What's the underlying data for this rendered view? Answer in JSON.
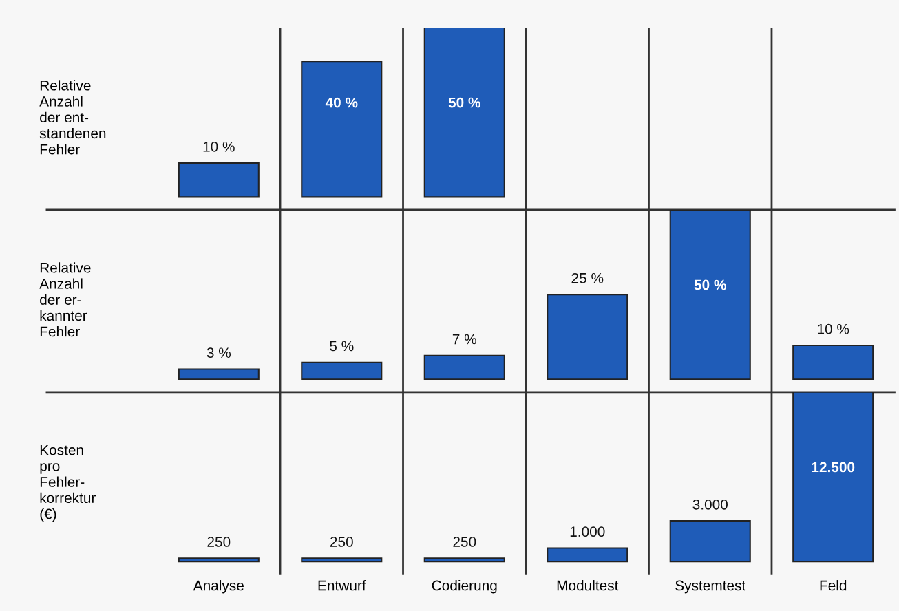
{
  "chart_data": [
    {
      "type": "bar",
      "ylabel": "Relative\nAnzahl\nder ent-\nstandenen\nFehler",
      "categories": [
        null,
        null,
        null,
        null,
        null,
        null
      ],
      "values": [
        10,
        40,
        50,
        null,
        null,
        null
      ],
      "value_labels": [
        "10 %",
        "40 %",
        "50 %",
        null,
        null,
        null
      ],
      "color": "#1f5cb8",
      "tick_labels": false
    },
    {
      "type": "bar",
      "ylabel": "Relative\nAnzahl\nder er-\nkannter\nFehler",
      "categories": [
        null,
        null,
        null,
        null,
        null,
        null
      ],
      "values": [
        3,
        5,
        7,
        25,
        50,
        10
      ],
      "value_labels": [
        "3 %",
        "5 %",
        "7 %",
        "25 %",
        "50 %",
        "10 %"
      ],
      "color": "#1f5cb8",
      "tick_labels": false
    },
    {
      "type": "bar",
      "ylabel": "Kosten\npro\nFehler-\nkorrektur\n(€)",
      "categories": [
        "Analyse",
        "Entwurf",
        "Codierung",
        "Modultest",
        "Systemtest",
        "Feld"
      ],
      "values": [
        250,
        250,
        250,
        1000,
        3000,
        12500
      ],
      "value_labels": [
        "250",
        "250",
        "250",
        "1.000",
        "3.000",
        "12.500"
      ],
      "color": "#1f5cb8",
      "tick_labels": "x"
    }
  ]
}
